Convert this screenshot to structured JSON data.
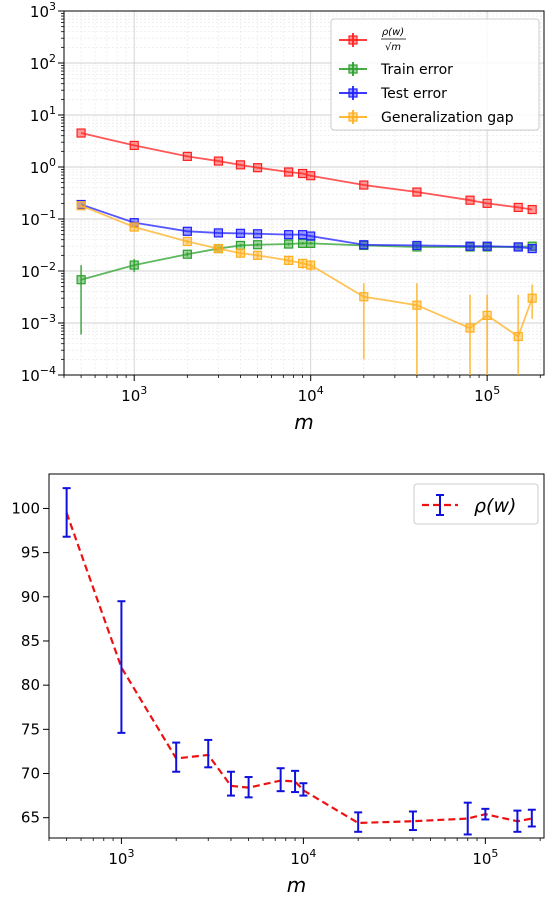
{
  "chart_data": [
    {
      "type": "line",
      "xscale": "log",
      "yscale": "log",
      "xlim": [
        400,
        210000
      ],
      "ylim": [
        0.0001,
        1000
      ],
      "grid": true,
      "xlabel": "m",
      "ylabel": "",
      "legend_position": "top-right",
      "x_ticks": [
        {
          "value": 1000,
          "base": "10",
          "exp": "3"
        },
        {
          "value": 10000,
          "base": "10",
          "exp": "4"
        },
        {
          "value": 100000,
          "base": "10",
          "exp": "5"
        }
      ],
      "y_ticks": [
        {
          "value": 1000,
          "base": "10",
          "exp": "3"
        },
        {
          "value": 100,
          "base": "10",
          "exp": "2"
        },
        {
          "value": 10,
          "base": "10",
          "exp": "1"
        },
        {
          "value": 1,
          "base": "10",
          "exp": "0"
        },
        {
          "value": 0.1,
          "base": "10",
          "exp": "−1"
        },
        {
          "value": 0.01,
          "base": "10",
          "exp": "−2"
        },
        {
          "value": 0.001,
          "base": "10",
          "exp": "−3"
        },
        {
          "value": 0.0001,
          "base": "10",
          "exp": "−4"
        }
      ],
      "x": [
        500,
        1000,
        2000,
        3000,
        4000,
        5000,
        7500,
        9000,
        10000,
        20000,
        40000,
        80000,
        100000,
        150000,
        180000
      ],
      "series": [
        {
          "name_num": "ρ(w)",
          "name_den": "√m",
          "color": "#ff2020",
          "values": [
            4.5,
            2.6,
            1.6,
            1.3,
            1.1,
            0.97,
            0.8,
            0.75,
            0.68,
            0.45,
            0.33,
            0.23,
            0.2,
            0.167,
            0.152
          ]
        },
        {
          "name": "Train error",
          "color": "#2ca02c",
          "values": [
            0.0068,
            0.013,
            0.021,
            0.027,
            0.031,
            0.032,
            0.033,
            0.034,
            0.034,
            0.031,
            0.029,
            0.029,
            0.029,
            0.029,
            0.03
          ],
          "err_low": [
            0.0006,
            0.0095,
            0.019,
            0.025,
            0.029,
            0.03,
            0.031,
            0.032,
            0.032,
            0.029,
            0.027,
            0.027,
            0.027,
            0.027,
            0.028
          ],
          "err_high": [
            0.013,
            0.017,
            0.023,
            0.029,
            0.033,
            0.034,
            0.035,
            0.036,
            0.036,
            0.033,
            0.031,
            0.031,
            0.031,
            0.031,
            0.032
          ]
        },
        {
          "name": "Test error",
          "color": "#1f1fff",
          "values": [
            0.19,
            0.085,
            0.058,
            0.054,
            0.053,
            0.052,
            0.05,
            0.05,
            0.047,
            0.032,
            0.031,
            0.03,
            0.03,
            0.029,
            0.027
          ]
        },
        {
          "name": "Generalization gap",
          "color": "#ffb020",
          "values": [
            0.18,
            0.07,
            0.037,
            0.027,
            0.022,
            0.02,
            0.016,
            0.014,
            0.013,
            0.0032,
            0.0022,
            0.0008,
            0.0014,
            0.00055,
            0.003
          ],
          "err_low": [
            0.17,
            0.06,
            0.033,
            0.024,
            0.019,
            0.017,
            0.013,
            0.011,
            0.01,
            0.0002,
            0.0001,
            0.0001,
            0.0001,
            0.0001,
            0.0012
          ],
          "err_high": [
            0.19,
            0.08,
            0.04,
            0.03,
            0.025,
            0.023,
            0.019,
            0.017,
            0.016,
            0.0058,
            0.0058,
            0.0035,
            0.0035,
            0.0035,
            0.0055
          ]
        }
      ]
    },
    {
      "type": "line",
      "xscale": "log",
      "yscale": "linear",
      "xlim": [
        400,
        210000
      ],
      "ylim": [
        62.7,
        103.9
      ],
      "grid": false,
      "xlabel": "m",
      "ylabel": "",
      "legend_position": "top-right",
      "x_ticks": [
        {
          "value": 1000,
          "base": "10",
          "exp": "3"
        },
        {
          "value": 10000,
          "base": "10",
          "exp": "4"
        },
        {
          "value": 100000,
          "base": "10",
          "exp": "5"
        }
      ],
      "y_ticks": [
        65,
        70,
        75,
        80,
        85,
        90,
        95,
        100
      ],
      "x": [
        500,
        1000,
        2000,
        3000,
        4000,
        5000,
        7500,
        9000,
        10000,
        20000,
        40000,
        80000,
        100000,
        150000,
        180000
      ],
      "series": [
        {
          "name": "ρ(w)",
          "line_color": "#ee1111",
          "error_color": "#1111dd",
          "values": [
            99.5,
            82.0,
            71.7,
            72.1,
            68.6,
            68.4,
            69.2,
            69.1,
            68.1,
            64.4,
            64.6,
            64.9,
            65.4,
            64.6,
            64.9
          ],
          "err_low": [
            96.8,
            74.6,
            70.2,
            70.7,
            67.5,
            67.3,
            68.0,
            67.9,
            67.5,
            63.4,
            63.6,
            63.1,
            64.8,
            63.4,
            64.0
          ],
          "err_high": [
            102.3,
            89.5,
            73.5,
            73.8,
            70.2,
            69.6,
            70.6,
            70.3,
            68.9,
            65.6,
            65.7,
            66.7,
            66.0,
            65.8,
            65.9
          ]
        }
      ]
    }
  ]
}
